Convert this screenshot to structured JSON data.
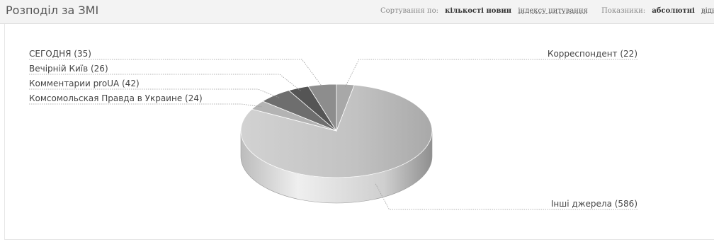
{
  "header": {
    "title": "Розподіл за ЗМІ",
    "sort_label": "Сортування по:",
    "sort_options": [
      "кількості новин",
      "індексу цитування"
    ],
    "metrics_label": "Показники:",
    "metric_options": [
      "абсолютні",
      "відносні"
    ]
  },
  "chart_data": {
    "type": "pie",
    "slices": [
      {
        "label": "Корреспондент (22)",
        "value": 22,
        "color": "#a8a8a8"
      },
      {
        "label": "Інші джерела (586)",
        "value": 586,
        "color": "#c6c6c6"
      },
      {
        "label": "Комсомольская Правда в Украине (24)",
        "value": 24,
        "color": "#b3b3b3"
      },
      {
        "label": "Комментарии proUA (42)",
        "value": 42,
        "color": "#6e6e6e"
      },
      {
        "label": "Вечірній Київ (26)",
        "value": 26,
        "color": "#555555"
      },
      {
        "label": "СЕГОДНЯ (35)",
        "value": 35,
        "color": "#8d8d8d"
      }
    ]
  }
}
